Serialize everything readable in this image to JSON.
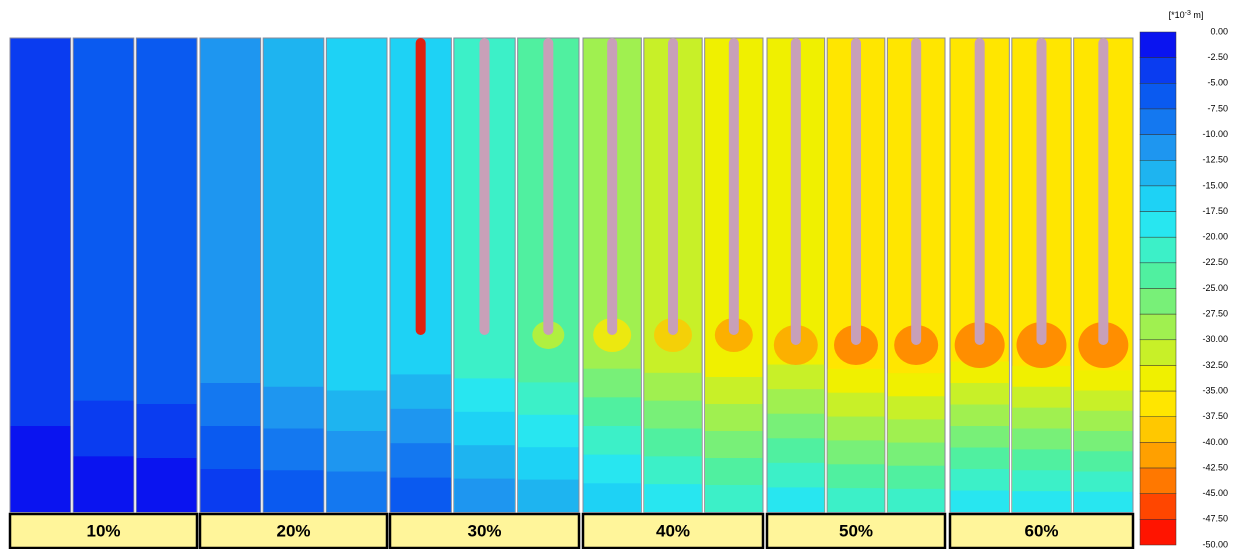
{
  "legend": {
    "unit_base": "[*10",
    "unit_exp": "-3",
    "unit_rest": " m]",
    "ticks": [
      "0.00",
      "-2.50",
      "-5.00",
      "-7.50",
      "-10.00",
      "-12.50",
      "-15.00",
      "-17.50",
      "-20.00",
      "-22.50",
      "-25.00",
      "-27.50",
      "-30.00",
      "-32.50",
      "-35.00",
      "-37.50",
      "-40.00",
      "-42.50",
      "-45.00",
      "-47.50",
      "-50.00"
    ]
  },
  "groups": [
    "10%",
    "20%",
    "30%",
    "40%",
    "50%",
    "60%"
  ]
}
